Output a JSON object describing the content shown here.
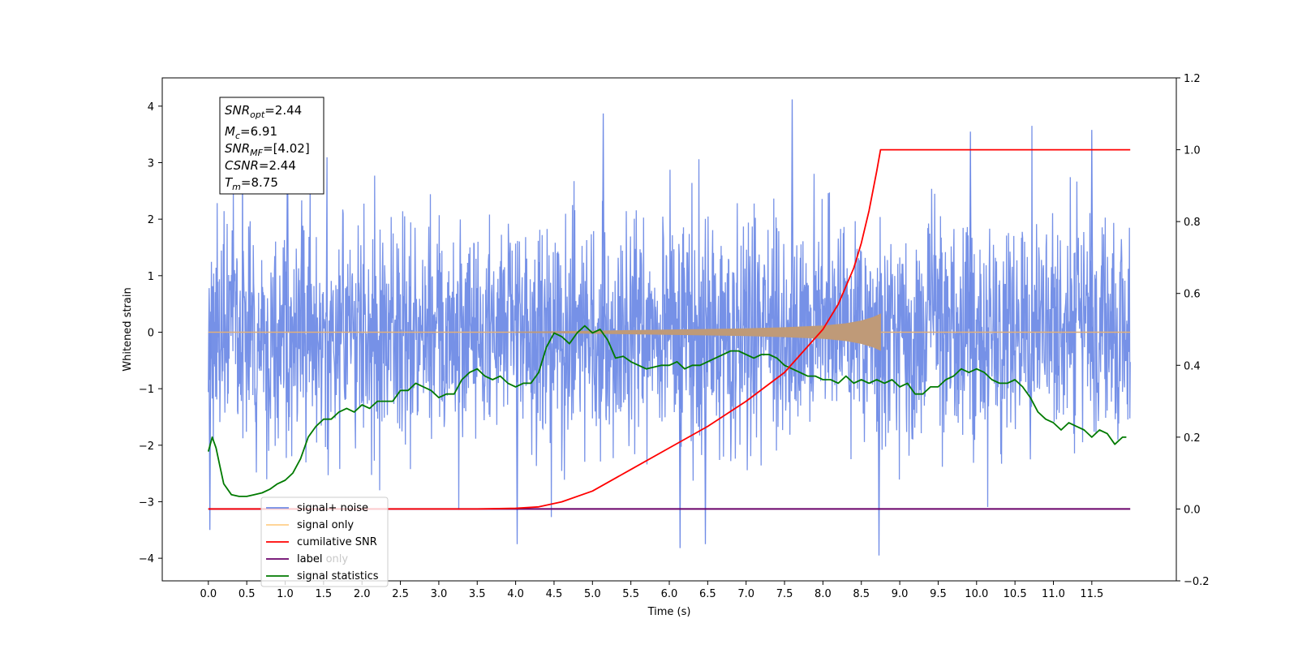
{
  "chart_data": {
    "type": "line",
    "xlabel": "Time (s)",
    "ylabel_left": "Whitened strain",
    "xlim": [
      -0.6,
      12.6
    ],
    "ylim_left": [
      -4.4,
      4.5
    ],
    "ylim_right": [
      -0.2,
      1.2
    ],
    "x_ticks": [
      0.0,
      0.5,
      1.0,
      1.5,
      2.0,
      2.5,
      3.0,
      3.5,
      4.0,
      4.5,
      5.0,
      5.5,
      6.0,
      6.5,
      7.0,
      7.5,
      8.0,
      8.5,
      9.0,
      9.5,
      10.0,
      10.5,
      11.0,
      11.5
    ],
    "x_tick_labels": [
      "0.0",
      "0.5",
      "1.0",
      "1.5",
      "2.0",
      "2.5",
      "3.0",
      "3.5",
      "4.0",
      "4.5",
      "5.0",
      "5.5",
      "6.0",
      "6.5",
      "7.0",
      "7.5",
      "8.0",
      "8.5",
      "9.0",
      "9.5",
      "10.0",
      "10.5",
      "11.0",
      "11.5"
    ],
    "y_ticks_left": [
      -4,
      -3,
      -2,
      -1,
      0,
      1,
      2,
      3,
      4
    ],
    "y_tick_labels_left": [
      "−4",
      "−3",
      "−2",
      "−1",
      "0",
      "1",
      "2",
      "3",
      "4"
    ],
    "y_ticks_right": [
      -0.2,
      0.0,
      0.2,
      0.4,
      0.6,
      0.8,
      1.0,
      1.2
    ],
    "y_tick_labels_right": [
      "−0.2",
      "0.0",
      "0.2",
      "0.4",
      "0.6",
      "0.8",
      "1.0",
      "1.2"
    ],
    "grid": false,
    "legend_position": "lower-left",
    "annotation": {
      "snr_opt": "2.44",
      "mc": "6.91",
      "snr_mf": "[4.02]",
      "csnr": "2.44",
      "tm": "8.75"
    },
    "series": [
      {
        "name": "signal+ noise",
        "axis": "left",
        "color": "#6f8be6",
        "x_range": [
          0.0,
          12.0
        ],
        "noise_range_typical": [
          -2.3,
          2.3
        ],
        "extreme_max": 4.12,
        "extreme_min": -3.95
      },
      {
        "name": "signal only",
        "axis": "left",
        "color": "#ffb347",
        "x_range": [
          0.0,
          12.0
        ],
        "chirp_envelope": {
          "x": [
            4.0,
            5.0,
            6.0,
            7.0,
            7.5,
            8.0,
            8.3,
            8.5,
            8.65,
            8.75
          ],
          "amplitude": [
            0.0,
            0.02,
            0.04,
            0.06,
            0.08,
            0.11,
            0.15,
            0.2,
            0.26,
            0.32
          ]
        }
      },
      {
        "name": "cumilative SNR",
        "axis": "right",
        "color": "#ff0000",
        "x": [
          0.0,
          3.5,
          4.0,
          4.3,
          4.6,
          5.0,
          5.5,
          6.0,
          6.5,
          7.0,
          7.5,
          8.0,
          8.2,
          8.4,
          8.5,
          8.6,
          8.7,
          8.75,
          12.0
        ],
        "values": [
          0.0,
          0.0,
          0.002,
          0.006,
          0.02,
          0.05,
          0.11,
          0.17,
          0.23,
          0.3,
          0.38,
          0.5,
          0.57,
          0.67,
          0.74,
          0.83,
          0.94,
          1.0,
          1.0
        ]
      },
      {
        "name": "label",
        "axis": "right",
        "color": "#6a006a",
        "x": [
          0.0,
          12.0
        ],
        "values": [
          0.0,
          0.0
        ]
      },
      {
        "name": "label only",
        "axis": "right",
        "color": "#c8c8c8",
        "hidden": true
      },
      {
        "name": "signal statistics",
        "axis": "right",
        "color": "#007a00",
        "x": [
          0.0,
          0.05,
          0.1,
          0.15,
          0.2,
          0.3,
          0.4,
          0.5,
          0.6,
          0.7,
          0.8,
          0.9,
          1.0,
          1.1,
          1.2,
          1.3,
          1.4,
          1.5,
          1.6,
          1.7,
          1.8,
          1.9,
          2.0,
          2.1,
          2.2,
          2.4,
          2.5,
          2.6,
          2.7,
          2.8,
          2.9,
          3.0,
          3.1,
          3.2,
          3.3,
          3.4,
          3.5,
          3.6,
          3.7,
          3.8,
          3.9,
          4.0,
          4.1,
          4.2,
          4.3,
          4.4,
          4.5,
          4.6,
          4.7,
          4.8,
          4.9,
          5.0,
          5.1,
          5.2,
          5.3,
          5.4,
          5.5,
          5.6,
          5.7,
          5.8,
          5.9,
          6.0,
          6.1,
          6.2,
          6.3,
          6.4,
          6.5,
          6.6,
          6.7,
          6.8,
          6.9,
          7.0,
          7.1,
          7.2,
          7.3,
          7.4,
          7.5,
          7.6,
          7.7,
          7.8,
          7.9,
          8.0,
          8.1,
          8.2,
          8.3,
          8.4,
          8.5,
          8.6,
          8.7,
          8.8,
          8.9,
          9.0,
          9.1,
          9.2,
          9.3,
          9.4,
          9.5,
          9.6,
          9.7,
          9.8,
          9.9,
          10.0,
          10.1,
          10.2,
          10.3,
          10.4,
          10.5,
          10.6,
          10.7,
          10.8,
          10.9,
          11.0,
          11.1,
          11.2,
          11.3,
          11.4,
          11.5,
          11.6,
          11.7,
          11.8,
          11.9,
          11.95
        ],
        "values": [
          0.16,
          0.2,
          0.17,
          0.12,
          0.07,
          0.04,
          0.035,
          0.035,
          0.04,
          0.045,
          0.055,
          0.07,
          0.08,
          0.1,
          0.14,
          0.2,
          0.23,
          0.25,
          0.25,
          0.27,
          0.28,
          0.27,
          0.29,
          0.28,
          0.3,
          0.3,
          0.33,
          0.33,
          0.35,
          0.34,
          0.33,
          0.31,
          0.32,
          0.32,
          0.36,
          0.38,
          0.39,
          0.37,
          0.36,
          0.37,
          0.35,
          0.34,
          0.35,
          0.35,
          0.38,
          0.45,
          0.49,
          0.48,
          0.46,
          0.49,
          0.51,
          0.49,
          0.5,
          0.47,
          0.42,
          0.425,
          0.41,
          0.4,
          0.39,
          0.395,
          0.4,
          0.4,
          0.41,
          0.39,
          0.4,
          0.4,
          0.41,
          0.42,
          0.43,
          0.44,
          0.44,
          0.43,
          0.42,
          0.43,
          0.43,
          0.42,
          0.4,
          0.39,
          0.38,
          0.37,
          0.37,
          0.36,
          0.36,
          0.35,
          0.37,
          0.35,
          0.36,
          0.35,
          0.36,
          0.35,
          0.36,
          0.34,
          0.35,
          0.32,
          0.32,
          0.34,
          0.34,
          0.36,
          0.37,
          0.39,
          0.38,
          0.39,
          0.38,
          0.36,
          0.35,
          0.35,
          0.36,
          0.34,
          0.31,
          0.27,
          0.25,
          0.24,
          0.22,
          0.24,
          0.23,
          0.22,
          0.2,
          0.22,
          0.21,
          0.18,
          0.2,
          0.2
        ]
      }
    ]
  }
}
